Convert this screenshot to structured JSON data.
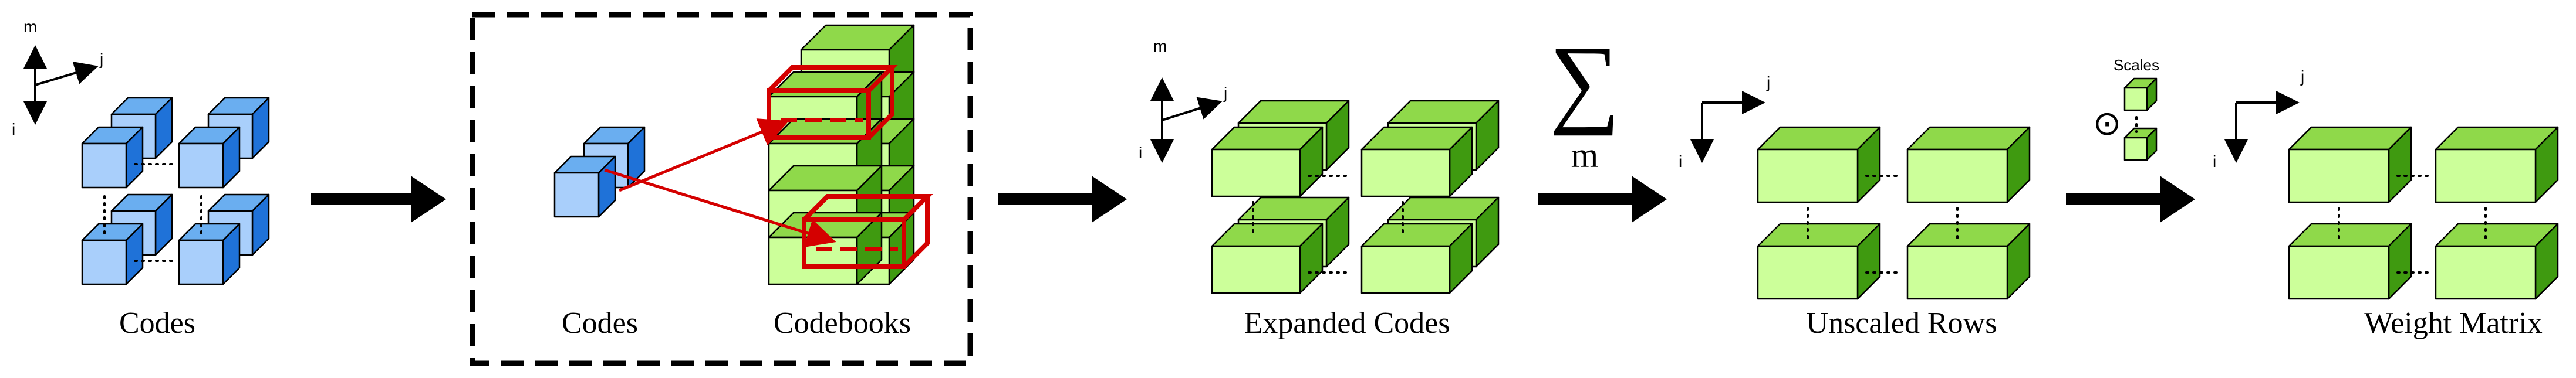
{
  "stages": {
    "codes": {
      "label": "Codes"
    },
    "lookup": {
      "codes_label": "Codes",
      "codebooks_label": "Codebooks"
    },
    "expanded": {
      "label": "Expanded Codes"
    },
    "unscaled": {
      "label": "Unscaled Rows"
    },
    "weight": {
      "label": "Weight Matrix"
    }
  },
  "axes": {
    "m": "m",
    "i": "i",
    "j": "j"
  },
  "sum": {
    "symbol": "∑",
    "index": "m"
  },
  "scales": {
    "label": "Scales",
    "operator": "⊙"
  },
  "colors": {
    "blue_front": "#a9cffb",
    "blue_top": "#6aaef0",
    "blue_side": "#1f72d8",
    "green_front": "#ccff9a",
    "green_top": "#8fd94a",
    "green_side": "#3f9a10",
    "highlight": "#d40000",
    "arrow": "#000000"
  }
}
